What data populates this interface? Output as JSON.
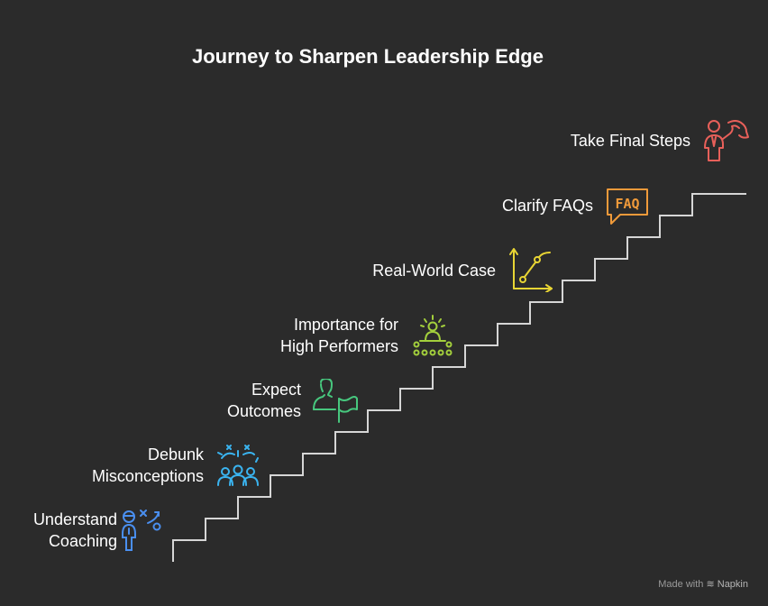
{
  "title": "Journey to Sharpen Leadership Edge",
  "steps": [
    {
      "label_lines": [
        "Understand",
        "Coaching"
      ],
      "icon": "coaching-strategy-icon",
      "color": "#4a8ff0"
    },
    {
      "label_lines": [
        "Debunk",
        "Misconceptions"
      ],
      "icon": "celebrating-group-icon",
      "color": "#3ab4f0"
    },
    {
      "label_lines": [
        "Expect",
        "Outcomes"
      ],
      "icon": "person-flag-icon",
      "color": "#47c77e"
    },
    {
      "label_lines": [
        "Importance for",
        "High Performers"
      ],
      "icon": "leader-audience-icon",
      "color": "#a3cf3c"
    },
    {
      "label_lines": [
        "Real-World Case"
      ],
      "icon": "line-graph-icon",
      "color": "#e8d534"
    },
    {
      "label_lines": [
        "Clarify FAQs"
      ],
      "icon": "faq-bubble-icon",
      "color": "#f09a3a"
    },
    {
      "label_lines": [
        "Take Final Steps"
      ],
      "icon": "presenter-icon",
      "color": "#e8605a"
    }
  ],
  "footer": {
    "made_with": "Made with",
    "brand": "Napkin"
  }
}
